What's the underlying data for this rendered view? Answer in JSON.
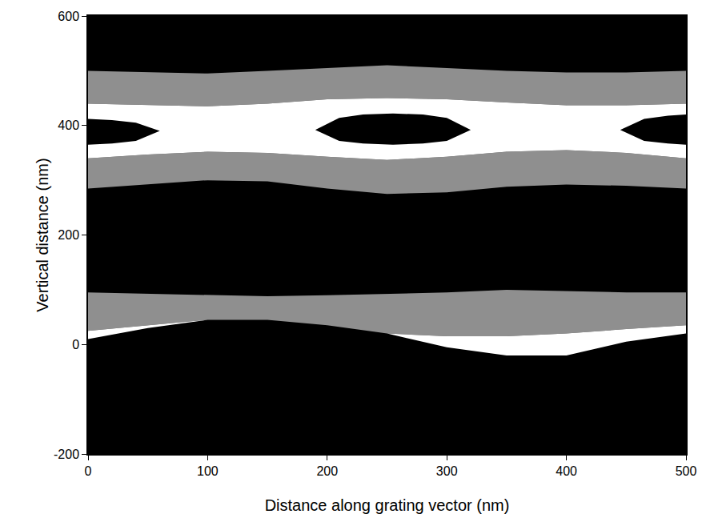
{
  "chart_data": {
    "type": "filled_regions",
    "x_label": "Distance along grating vector (nm)",
    "y_label": "Vertical distance (nm)",
    "xlim": [
      0,
      500
    ],
    "xticks": [
      0,
      100,
      200,
      300,
      400,
      500
    ],
    "ylim": [
      -200,
      600
    ],
    "yticks": [
      -200,
      0,
      200,
      400,
      600
    ],
    "grid": false,
    "regions": [
      {
        "color": "#8f8f8f",
        "x": [
          0,
          50,
          100,
          150,
          200,
          250,
          300,
          350,
          400,
          450,
          500
        ],
        "lower": [
          440,
          438,
          435,
          440,
          448,
          450,
          448,
          442,
          437,
          437,
          440
        ],
        "upper": [
          500,
          497,
          495,
          500,
          505,
          510,
          505,
          500,
          497,
          497,
          500
        ]
      },
      {
        "color": "#8f8f8f",
        "x": [
          0,
          50,
          100,
          150,
          200,
          250,
          300,
          350,
          400,
          450,
          500
        ],
        "lower": [
          285,
          292,
          300,
          298,
          285,
          275,
          278,
          288,
          292,
          290,
          285
        ],
        "upper": [
          340,
          347,
          352,
          350,
          343,
          337,
          343,
          352,
          355,
          350,
          340
        ]
      },
      {
        "color": "#ffffff",
        "x": [
          0,
          50,
          100,
          150,
          200,
          250,
          300,
          350,
          400,
          450,
          500
        ],
        "lower": [
          340,
          347,
          352,
          350,
          343,
          337,
          343,
          352,
          355,
          350,
          340
        ],
        "upper": [
          440,
          438,
          435,
          440,
          448,
          450,
          448,
          442,
          437,
          437,
          440
        ]
      },
      {
        "color": "#000000",
        "x": [
          0,
          20,
          40,
          60
        ],
        "lower": [
          365,
          367,
          372,
          390
        ],
        "upper": [
          412,
          410,
          405,
          390
        ]
      },
      {
        "color": "#000000",
        "x": [
          190,
          210,
          230,
          255,
          280,
          300,
          320
        ],
        "lower": [
          392,
          372,
          367,
          365,
          367,
          372,
          392
        ],
        "upper": [
          392,
          414,
          420,
          422,
          420,
          414,
          392
        ]
      },
      {
        "color": "#000000",
        "x": [
          445,
          465,
          485,
          500
        ],
        "lower": [
          392,
          372,
          367,
          365
        ],
        "upper": [
          392,
          412,
          418,
          420
        ]
      },
      {
        "color": "#8f8f8f",
        "x": [
          0,
          50,
          100,
          150,
          200,
          250,
          300,
          350,
          400,
          450,
          500
        ],
        "lower": [
          25,
          35,
          45,
          45,
          35,
          20,
          15,
          15,
          20,
          28,
          35
        ],
        "upper": [
          95,
          93,
          90,
          88,
          90,
          92,
          95,
          100,
          98,
          95,
          95
        ]
      },
      {
        "color": "#ffffff",
        "x": [
          0,
          50,
          100,
          150,
          200,
          250,
          300,
          350,
          400,
          450,
          500
        ],
        "lower": [
          10,
          30,
          45,
          45,
          35,
          20,
          -5,
          -20,
          -20,
          5,
          20
        ],
        "upper": [
          25,
          35,
          45,
          45,
          35,
          20,
          15,
          15,
          20,
          28,
          35
        ]
      }
    ]
  }
}
